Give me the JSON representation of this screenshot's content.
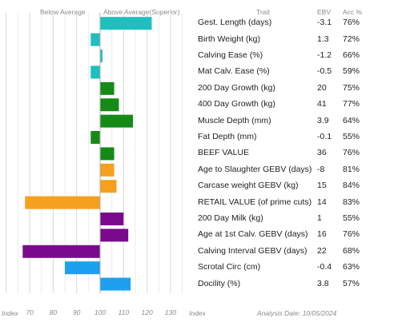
{
  "header": {
    "below_average": "Below Average",
    "above_average": "Above Average(Superior)",
    "trait": "Trait",
    "ebv": "EBV",
    "acc": "Acc %"
  },
  "footer": {
    "index_left": "Index",
    "index_right": "Index",
    "analysis_date": "Analysis Date: 10/05/2024"
  },
  "chart_data": {
    "type": "bar",
    "orientation": "horizontal",
    "baseline": 100,
    "xlim": [
      55,
      140
    ],
    "xticks": [
      70,
      80,
      90,
      100,
      110,
      120,
      130
    ],
    "grid": true,
    "rows": [
      {
        "trait": "Gest. Length (days)",
        "ebv": "-3.1",
        "acc": "76%",
        "value": 122,
        "color": "#1fbfbf"
      },
      {
        "trait": "Birth Weight (kg)",
        "ebv": "1.3",
        "acc": "72%",
        "value": 96,
        "color": "#1fbfbf"
      },
      {
        "trait": "Calving Ease (%)",
        "ebv": "-1.2",
        "acc": "66%",
        "value": 101,
        "color": "#1fbfbf"
      },
      {
        "trait": "Mat Calv. Ease (%)",
        "ebv": "-0.5",
        "acc": "59%",
        "value": 96,
        "color": "#1fbfbf"
      },
      {
        "trait": "200 Day Growth (kg)",
        "ebv": "20",
        "acc": "75%",
        "value": 106,
        "color": "#168a16"
      },
      {
        "trait": "400 Day Growth (kg)",
        "ebv": "41",
        "acc": "77%",
        "value": 108,
        "color": "#168a16"
      },
      {
        "trait": "Muscle Depth (mm)",
        "ebv": "3.9",
        "acc": "64%",
        "value": 114,
        "color": "#168a16"
      },
      {
        "trait": "Fat Depth (mm)",
        "ebv": "-0.1",
        "acc": "55%",
        "value": 96,
        "color": "#168a16"
      },
      {
        "trait": "BEEF VALUE",
        "ebv": "36",
        "acc": "76%",
        "value": 106,
        "color": "#168a16"
      },
      {
        "trait": "Age to Slaughter GEBV (days)",
        "ebv": "-8",
        "acc": "81%",
        "value": 106,
        "color": "#f5a01e"
      },
      {
        "trait": "Carcase weight GEBV (kg)",
        "ebv": "15",
        "acc": "84%",
        "value": 107,
        "color": "#f5a01e"
      },
      {
        "trait": "RETAIL VALUE (of prime cuts)",
        "ebv": "14",
        "acc": "83%",
        "value": 68,
        "color": "#f5a01e"
      },
      {
        "trait": "200 Day Milk (kg)",
        "ebv": "1",
        "acc": "55%",
        "value": 110,
        "color": "#7a0a8c"
      },
      {
        "trait": "Age at 1st Calv. GEBV (days)",
        "ebv": "16",
        "acc": "76%",
        "value": 112,
        "color": "#7a0a8c"
      },
      {
        "trait": "Calving Interval GEBV (days)",
        "ebv": "22",
        "acc": "68%",
        "value": 67,
        "color": "#7a0a8c"
      },
      {
        "trait": "Scrotal Circ (cm)",
        "ebv": "-0.4",
        "acc": "63%",
        "value": 85,
        "color": "#1ea0f0"
      },
      {
        "trait": "Docility (%)",
        "ebv": "3.8",
        "acc": "57%",
        "value": 113,
        "color": "#1ea0f0"
      }
    ]
  }
}
